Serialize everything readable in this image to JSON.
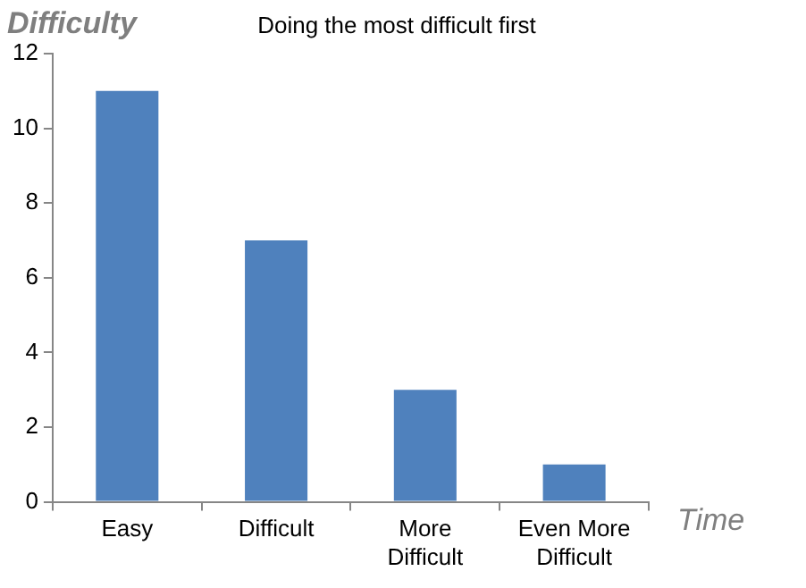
{
  "chart_data": {
    "type": "bar",
    "title": "Doing the most difficult first",
    "xlabel": "Time",
    "ylabel": "Difficulty",
    "categories": [
      "Easy",
      "Difficult",
      "More Difficult",
      "Even More Difficult"
    ],
    "values": [
      11,
      7,
      3,
      1
    ],
    "color": "#4f81bd",
    "ylim": [
      0,
      12
    ],
    "yticks": [
      0,
      2,
      4,
      6,
      8,
      10,
      12
    ],
    "grid": false,
    "legend": false
  }
}
